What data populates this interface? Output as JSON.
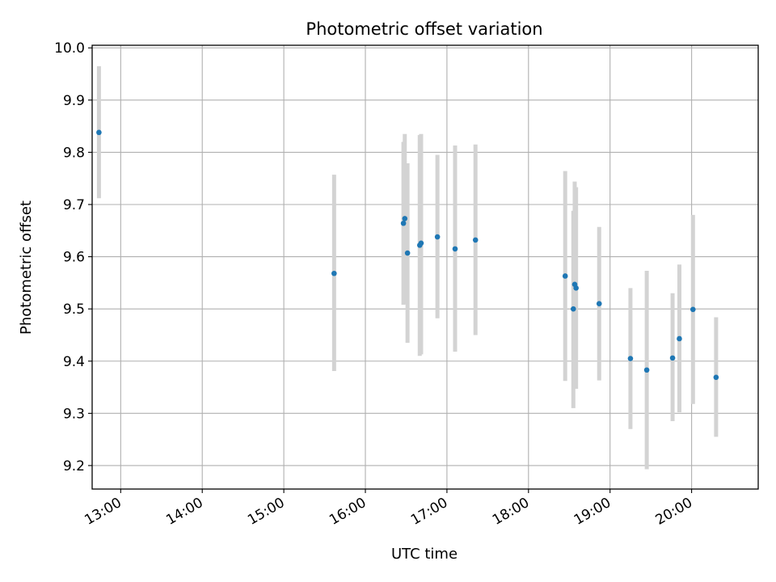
{
  "chart_data": {
    "type": "scatter",
    "title": "Photometric offset variation",
    "xlabel": "UTC time",
    "ylabel": "Photometric offset",
    "x_unit": "UTC time of day",
    "xlim": [
      "12:39",
      "20:49"
    ],
    "ylim": [
      9.155,
      10.005
    ],
    "grid": true,
    "x_ticks": [
      "13:00",
      "14:00",
      "15:00",
      "16:00",
      "17:00",
      "18:00",
      "19:00",
      "20:00"
    ],
    "y_ticks": [
      "9.2",
      "9.3",
      "9.4",
      "9.5",
      "9.6",
      "9.7",
      "9.8",
      "9.9",
      "10.0"
    ],
    "colors": {
      "point": "#1f77b4",
      "error_bar": "#d3d3d3",
      "grid": "#b0b0b0"
    },
    "points": [
      {
        "x": "12:44",
        "y": 9.838,
        "ylo": 9.712,
        "yhi": 9.965
      },
      {
        "x": "15:37",
        "y": 9.568,
        "ylo": 9.381,
        "yhi": 9.757
      },
      {
        "x": "16:28",
        "y": 9.664,
        "ylo": 9.508,
        "yhi": 9.82
      },
      {
        "x": "16:29",
        "y": 9.673,
        "ylo": 9.51,
        "yhi": 9.835
      },
      {
        "x": "16:31",
        "y": 9.607,
        "ylo": 9.435,
        "yhi": 9.779
      },
      {
        "x": "16:40",
        "y": 9.622,
        "ylo": 9.41,
        "yhi": 9.833
      },
      {
        "x": "16:41",
        "y": 9.626,
        "ylo": 9.413,
        "yhi": 9.835
      },
      {
        "x": "16:53",
        "y": 9.638,
        "ylo": 9.482,
        "yhi": 9.795
      },
      {
        "x": "17:06",
        "y": 9.615,
        "ylo": 9.418,
        "yhi": 9.813
      },
      {
        "x": "17:21",
        "y": 9.632,
        "ylo": 9.45,
        "yhi": 9.815
      },
      {
        "x": "18:27",
        "y": 9.563,
        "ylo": 9.362,
        "yhi": 9.764
      },
      {
        "x": "18:33",
        "y": 9.5,
        "ylo": 9.31,
        "yhi": 9.688
      },
      {
        "x": "18:34",
        "y": 9.547,
        "ylo": 9.35,
        "yhi": 9.744
      },
      {
        "x": "18:35",
        "y": 9.54,
        "ylo": 9.347,
        "yhi": 9.733
      },
      {
        "x": "18:52",
        "y": 9.51,
        "ylo": 9.363,
        "yhi": 9.657
      },
      {
        "x": "19:15",
        "y": 9.405,
        "ylo": 9.27,
        "yhi": 9.54
      },
      {
        "x": "19:27",
        "y": 9.383,
        "ylo": 9.193,
        "yhi": 9.573
      },
      {
        "x": "19:46",
        "y": 9.406,
        "ylo": 9.285,
        "yhi": 9.53
      },
      {
        "x": "19:51",
        "y": 9.443,
        "ylo": 9.302,
        "yhi": 9.585
      },
      {
        "x": "20:01",
        "y": 9.499,
        "ylo": 9.318,
        "yhi": 9.68
      },
      {
        "x": "20:18",
        "y": 9.369,
        "ylo": 9.255,
        "yhi": 9.484
      }
    ]
  }
}
